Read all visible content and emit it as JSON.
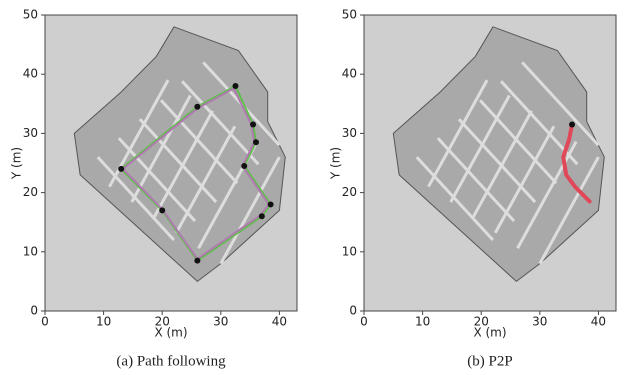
{
  "chart_data": [
    {
      "type": "line",
      "caption": "(a) Path following",
      "xlabel": "X (m)",
      "ylabel": "Y (m)",
      "xlim": [
        0,
        43
      ],
      "ylim": [
        0,
        50
      ],
      "xticks": [
        0,
        10,
        20,
        30,
        40
      ],
      "yticks": [
        0,
        10,
        20,
        30,
        40,
        50
      ],
      "series": [
        {
          "color": "#5fbf4a",
          "marker": false,
          "x": [
            13,
            26,
            32.5,
            35.5,
            36,
            34,
            38.5,
            37,
            26,
            20,
            13
          ],
          "values": [
            24,
            34.5,
            38,
            31.5,
            28.5,
            24.5,
            18,
            16,
            8.5,
            17,
            24
          ]
        },
        {
          "color": "#b07ab0",
          "marker": false,
          "x": [
            13.3,
            26,
            32.2,
            35.2,
            35.7,
            33.7,
            38.2,
            36.8,
            26,
            20,
            13.3
          ],
          "values": [
            24,
            34.2,
            37.6,
            31.5,
            28.5,
            24.5,
            18,
            16.2,
            8.8,
            17.2,
            24
          ]
        },
        {
          "color": "#111111",
          "marker": true,
          "x": [
            13,
            26,
            32.5,
            35.5,
            36,
            34,
            38.5,
            37,
            26,
            20
          ],
          "values": [
            24,
            34.5,
            38,
            31.5,
            28.5,
            24.5,
            18,
            16,
            8.5,
            17
          ]
        }
      ]
    },
    {
      "type": "line",
      "caption": "(b) P2P",
      "xlabel": "X (m)",
      "ylabel": "Y (m)",
      "xlim": [
        0,
        43
      ],
      "ylim": [
        0,
        50
      ],
      "xticks": [
        0,
        10,
        20,
        30,
        40
      ],
      "yticks": [
        0,
        10,
        20,
        30,
        40,
        50
      ],
      "series": [
        {
          "color": "#e0485a",
          "marker": false,
          "x": [
            35.5,
            35,
            34,
            34.5,
            36,
            38.5
          ],
          "values": [
            31.5,
            29,
            26,
            23,
            21,
            18.5
          ]
        },
        {
          "color": "#111111",
          "marker": true,
          "x": [
            35.5
          ],
          "values": [
            31.5
          ]
        }
      ]
    }
  ]
}
